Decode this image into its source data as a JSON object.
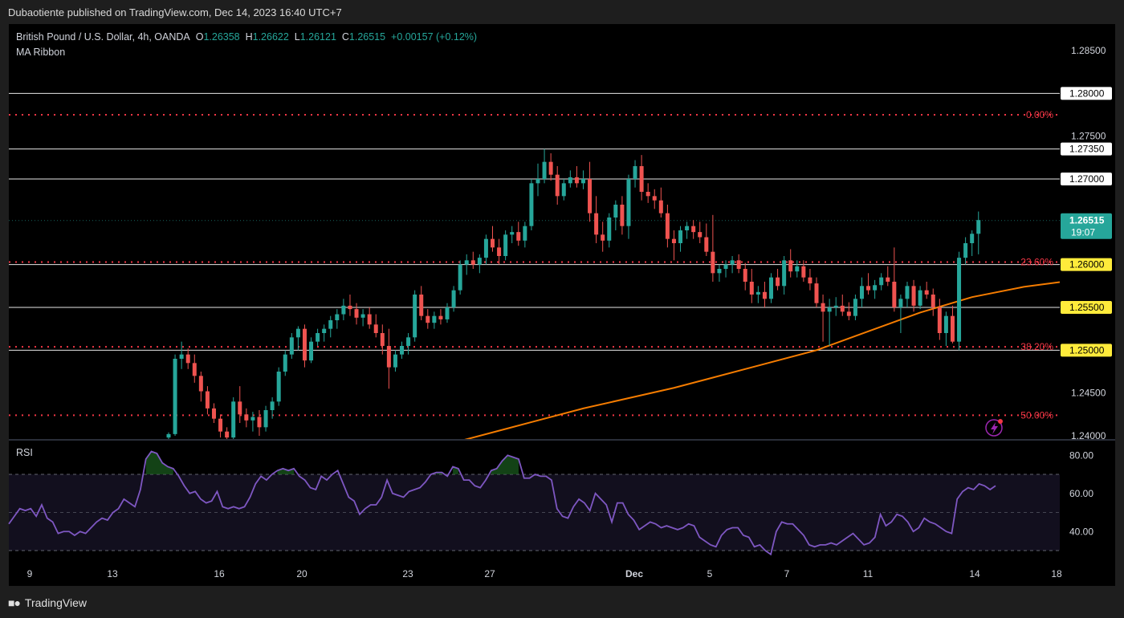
{
  "header": {
    "published": "Dubaotiente published on TradingView.com, Dec 14, 2023 16:40 UTC+7"
  },
  "footer": {
    "brand": "TradingView"
  },
  "legend": {
    "symbol": "British Pound / U.S. Dollar, 4h, OANDA",
    "o_label": "O",
    "o": "1.26358",
    "h_label": "H",
    "h": "1.26622",
    "l_label": "L",
    "l": "1.26121",
    "c_label": "C",
    "c": "1.26515",
    "change": "+0.00157 (+0.12%)",
    "indicator": "MA Ribbon"
  },
  "rsi": {
    "title": "RSI"
  },
  "colors": {
    "up": "#26a69a",
    "down": "#ef5350",
    "ma": "#f57c00",
    "rsi": "#7e57c2",
    "fib": "#f23645",
    "price_badge": "#26a69a",
    "level_badge": "#ffeb3b"
  },
  "chart_data": {
    "type": "candlestick",
    "symbol": "GBPUSD",
    "timeframe": "4h",
    "x_ticks": [
      "9",
      "13",
      "16",
      "20",
      "23",
      "27",
      "Dec",
      "5",
      "7",
      "11",
      "14",
      "18"
    ],
    "y_ticks": [
      "1.28500",
      "1.28000",
      "1.27500",
      "1.27000",
      "1.24500",
      "1.24000"
    ],
    "horizontal_levels": [
      "1.28000",
      "1.27350",
      "1.27000",
      "1.26000",
      "1.25500",
      "1.25000"
    ],
    "fib_levels": [
      {
        "label": "0.00%",
        "price": 1.2775
      },
      {
        "label": "23.60%",
        "price": 1.2603
      },
      {
        "label": "38.20%",
        "price": 1.2504
      },
      {
        "label": "50.00%",
        "price": 1.2424
      }
    ],
    "last_price": {
      "value": "1.26515",
      "countdown": "19:07"
    },
    "price_range": [
      1.2394,
      1.2885
    ],
    "ohlc": [
      [
        1.2398,
        1.2404,
        1.2392,
        1.2402
      ],
      [
        1.2402,
        1.2495,
        1.24,
        1.249
      ],
      [
        1.249,
        1.251,
        1.2478,
        1.2495
      ],
      [
        1.2495,
        1.2502,
        1.2478,
        1.2485
      ],
      [
        1.2485,
        1.2495,
        1.2462,
        1.247
      ],
      [
        1.247,
        1.2475,
        1.244,
        1.2452
      ],
      [
        1.2452,
        1.2458,
        1.2425,
        1.2432
      ],
      [
        1.2432,
        1.2438,
        1.2415,
        1.242
      ],
      [
        1.242,
        1.2425,
        1.2398,
        1.2405
      ],
      [
        1.2405,
        1.241,
        1.2392,
        1.2398
      ],
      [
        1.2398,
        1.2445,
        1.2396,
        1.244
      ],
      [
        1.244,
        1.2458,
        1.2415,
        1.2425
      ],
      [
        1.2425,
        1.2432,
        1.241,
        1.2418
      ],
      [
        1.2418,
        1.2428,
        1.2405,
        1.2422
      ],
      [
        1.2422,
        1.243,
        1.24,
        1.241
      ],
      [
        1.241,
        1.2435,
        1.2405,
        1.243
      ],
      [
        1.243,
        1.2445,
        1.242,
        1.244
      ],
      [
        1.244,
        1.248,
        1.2435,
        1.2475
      ],
      [
        1.2475,
        1.25,
        1.247,
        1.2495
      ],
      [
        1.2495,
        1.252,
        1.249,
        1.2515
      ],
      [
        1.2515,
        1.2528,
        1.25,
        1.2525
      ],
      [
        1.2525,
        1.253,
        1.248,
        1.2488
      ],
      [
        1.2488,
        1.2515,
        1.2485,
        1.251
      ],
      [
        1.251,
        1.2525,
        1.2505,
        1.252
      ],
      [
        1.252,
        1.253,
        1.251,
        1.2525
      ],
      [
        1.2525,
        1.254,
        1.2515,
        1.2535
      ],
      [
        1.2535,
        1.2548,
        1.2525,
        1.2542
      ],
      [
        1.2542,
        1.256,
        1.2535,
        1.2552
      ],
      [
        1.2552,
        1.2565,
        1.254,
        1.2548
      ],
      [
        1.2548,
        1.2555,
        1.253,
        1.2538
      ],
      [
        1.2538,
        1.2548,
        1.2528,
        1.2542
      ],
      [
        1.2542,
        1.255,
        1.2525,
        1.253
      ],
      [
        1.253,
        1.2542,
        1.2515,
        1.252
      ],
      [
        1.252,
        1.253,
        1.2495,
        1.2505
      ],
      [
        1.2505,
        1.2525,
        1.2455,
        1.248
      ],
      [
        1.248,
        1.25,
        1.2475,
        1.2495
      ],
      [
        1.2495,
        1.251,
        1.249,
        1.2505
      ],
      [
        1.2505,
        1.252,
        1.2495,
        1.2515
      ],
      [
        1.2515,
        1.257,
        1.251,
        1.2565
      ],
      [
        1.2565,
        1.2575,
        1.2535,
        1.254
      ],
      [
        1.254,
        1.2548,
        1.2525,
        1.2532
      ],
      [
        1.2532,
        1.2545,
        1.2525,
        1.254
      ],
      [
        1.254,
        1.2548,
        1.253,
        1.2536
      ],
      [
        1.2536,
        1.2555,
        1.2532,
        1.255
      ],
      [
        1.255,
        1.2575,
        1.2545,
        1.257
      ],
      [
        1.257,
        1.2605,
        1.2565,
        1.26
      ],
      [
        1.26,
        1.2612,
        1.2588,
        1.2605
      ],
      [
        1.2605,
        1.2615,
        1.2595,
        1.26
      ],
      [
        1.26,
        1.2612,
        1.259,
        1.2608
      ],
      [
        1.2608,
        1.2635,
        1.26,
        1.263
      ],
      [
        1.263,
        1.2645,
        1.2615,
        1.262
      ],
      [
        1.262,
        1.263,
        1.26,
        1.261
      ],
      [
        1.261,
        1.264,
        1.2605,
        1.2635
      ],
      [
        1.2635,
        1.2645,
        1.2625,
        1.2638
      ],
      [
        1.2638,
        1.265,
        1.2622,
        1.2628
      ],
      [
        1.2628,
        1.265,
        1.262,
        1.2645
      ],
      [
        1.2645,
        1.27,
        1.264,
        1.2695
      ],
      [
        1.2695,
        1.2718,
        1.268,
        1.27
      ],
      [
        1.27,
        1.2735,
        1.2695,
        1.272
      ],
      [
        1.272,
        1.273,
        1.2698,
        1.2705
      ],
      [
        1.2705,
        1.2715,
        1.267,
        1.268
      ],
      [
        1.268,
        1.27,
        1.2675,
        1.2695
      ],
      [
        1.2695,
        1.271,
        1.269,
        1.2702
      ],
      [
        1.2702,
        1.2715,
        1.269,
        1.2695
      ],
      [
        1.2695,
        1.271,
        1.2688,
        1.27
      ],
      [
        1.27,
        1.272,
        1.265,
        1.266
      ],
      [
        1.266,
        1.268,
        1.2625,
        1.2635
      ],
      [
        1.2635,
        1.265,
        1.2615,
        1.2628
      ],
      [
        1.2628,
        1.266,
        1.262,
        1.2655
      ],
      [
        1.2655,
        1.2675,
        1.264,
        1.267
      ],
      [
        1.267,
        1.268,
        1.2635,
        1.2645
      ],
      [
        1.2645,
        1.2705,
        1.263,
        1.27
      ],
      [
        1.27,
        1.2722,
        1.269,
        1.2715
      ],
      [
        1.2715,
        1.2728,
        1.2675,
        1.2685
      ],
      [
        1.2685,
        1.2695,
        1.2672,
        1.268
      ],
      [
        1.268,
        1.2688,
        1.2665,
        1.2675
      ],
      [
        1.2675,
        1.269,
        1.2655,
        1.266
      ],
      [
        1.266,
        1.267,
        1.262,
        1.263
      ],
      [
        1.263,
        1.264,
        1.2605,
        1.2625
      ],
      [
        1.2625,
        1.2645,
        1.2615,
        1.264
      ],
      [
        1.264,
        1.265,
        1.263,
        1.2645
      ],
      [
        1.2645,
        1.2652,
        1.263,
        1.2638
      ],
      [
        1.2638,
        1.265,
        1.2625,
        1.2632
      ],
      [
        1.2632,
        1.2648,
        1.261,
        1.2615
      ],
      [
        1.2615,
        1.2658,
        1.258,
        1.259
      ],
      [
        1.259,
        1.26,
        1.258,
        1.2595
      ],
      [
        1.2595,
        1.2605,
        1.2585,
        1.26
      ],
      [
        1.26,
        1.261,
        1.259,
        1.2605
      ],
      [
        1.2605,
        1.2612,
        1.259,
        1.2595
      ],
      [
        1.2595,
        1.2602,
        1.257,
        1.258
      ],
      [
        1.258,
        1.2595,
        1.2555,
        1.2565
      ],
      [
        1.2565,
        1.2575,
        1.2555,
        1.2568
      ],
      [
        1.2568,
        1.258,
        1.255,
        1.256
      ],
      [
        1.256,
        1.259,
        1.2555,
        1.2585
      ],
      [
        1.2585,
        1.2595,
        1.257,
        1.2575
      ],
      [
        1.2575,
        1.261,
        1.2565,
        1.2605
      ],
      [
        1.2605,
        1.2618,
        1.2585,
        1.2592
      ],
      [
        1.2592,
        1.2605,
        1.2585,
        1.2598
      ],
      [
        1.2598,
        1.2605,
        1.258,
        1.2585
      ],
      [
        1.2585,
        1.2595,
        1.257,
        1.2578
      ],
      [
        1.2578,
        1.2585,
        1.255,
        1.2555
      ],
      [
        1.2555,
        1.2565,
        1.251,
        1.2545
      ],
      [
        1.2545,
        1.256,
        1.2505,
        1.255
      ],
      [
        1.255,
        1.2562,
        1.254,
        1.2552
      ],
      [
        1.2552,
        1.2565,
        1.254,
        1.2545
      ],
      [
        1.2545,
        1.2556,
        1.2535,
        1.254
      ],
      [
        1.254,
        1.2565,
        1.2535,
        1.256
      ],
      [
        1.256,
        1.2585,
        1.255,
        1.2575
      ],
      [
        1.2575,
        1.259,
        1.2565,
        1.257
      ],
      [
        1.257,
        1.2582,
        1.256,
        1.2576
      ],
      [
        1.2576,
        1.259,
        1.257,
        1.2585
      ],
      [
        1.2585,
        1.2598,
        1.2575,
        1.258
      ],
      [
        1.258,
        1.262,
        1.2545,
        1.255
      ],
      [
        1.255,
        1.2565,
        1.252,
        1.256
      ],
      [
        1.256,
        1.258,
        1.255,
        1.2575
      ],
      [
        1.2575,
        1.2582,
        1.2545,
        1.2552
      ],
      [
        1.2552,
        1.2575,
        1.2548,
        1.257
      ],
      [
        1.257,
        1.258,
        1.256,
        1.2565
      ],
      [
        1.2565,
        1.2572,
        1.254,
        1.255
      ],
      [
        1.255,
        1.256,
        1.2512,
        1.252
      ],
      [
        1.252,
        1.2545,
        1.2505,
        1.254
      ],
      [
        1.254,
        1.2552,
        1.2508,
        1.251
      ],
      [
        1.251,
        1.2615,
        1.25,
        1.2608
      ],
      [
        1.2608,
        1.2632,
        1.26,
        1.2625
      ],
      [
        1.2625,
        1.264,
        1.261,
        1.2636
      ],
      [
        1.2636,
        1.2662,
        1.2612,
        1.2652
      ]
    ],
    "ma": {
      "name": "MA Ribbon",
      "points": [
        [
          44,
          1.2392
        ],
        [
          56,
          1.2416
        ],
        [
          64,
          1.2432
        ],
        [
          78,
          1.2456
        ],
        [
          90,
          1.248
        ],
        [
          100,
          1.25
        ],
        [
          108,
          1.2522
        ],
        [
          116,
          1.2544
        ],
        [
          124,
          1.2562
        ],
        [
          132,
          1.2574
        ],
        [
          140,
          1.2582
        ],
        [
          148,
          1.2588
        ],
        [
          156,
          1.2594
        ],
        [
          164,
          1.2598
        ],
        [
          172,
          1.2598
        ],
        [
          180,
          1.2602
        ]
      ]
    },
    "rsi_values": [
      44,
      48,
      52,
      51,
      52,
      48,
      54,
      47,
      45,
      39,
      40,
      40,
      38,
      40,
      39,
      42,
      45,
      47,
      46,
      50,
      52,
      57,
      55,
      53,
      62,
      78,
      82,
      81,
      76,
      74,
      73,
      69,
      64,
      60,
      61,
      57,
      55,
      56,
      61,
      53,
      52,
      53,
      52,
      53,
      58,
      65,
      69,
      67,
      70,
      72,
      73,
      72,
      73,
      69,
      67,
      63,
      62,
      69,
      67,
      70,
      72,
      65,
      58,
      56,
      49,
      52,
      54,
      54,
      58,
      67,
      60,
      59,
      58,
      61,
      62,
      63,
      66,
      70,
      71,
      71,
      69,
      74,
      73,
      67,
      67,
      64,
      63,
      67,
      72,
      73,
      77,
      80,
      79,
      78,
      68,
      68,
      70,
      69,
      69,
      67,
      52,
      48,
      47,
      53,
      57,
      55,
      51,
      60,
      57,
      54,
      45,
      55,
      55,
      49,
      46,
      41,
      43,
      45,
      44,
      42,
      43,
      42,
      41,
      42,
      44,
      43,
      37,
      35,
      33,
      32,
      38,
      41,
      42,
      42,
      38,
      37,
      32,
      33,
      30,
      28,
      40,
      45,
      44,
      44,
      41,
      38,
      33,
      32,
      33,
      33,
      34,
      33,
      35,
      37,
      39,
      36,
      33,
      34,
      37,
      49,
      43,
      45,
      49,
      48,
      45,
      40,
      42,
      47,
      45,
      44,
      42,
      40,
      39,
      57,
      61,
      63,
      62,
      65,
      64,
      62,
      64
    ],
    "rsi_scale": [
      20,
      90
    ],
    "rsi_ticks": [
      "80.00",
      "60.00",
      "40.00"
    ],
    "rsi_bands": [
      70,
      50,
      30
    ]
  }
}
